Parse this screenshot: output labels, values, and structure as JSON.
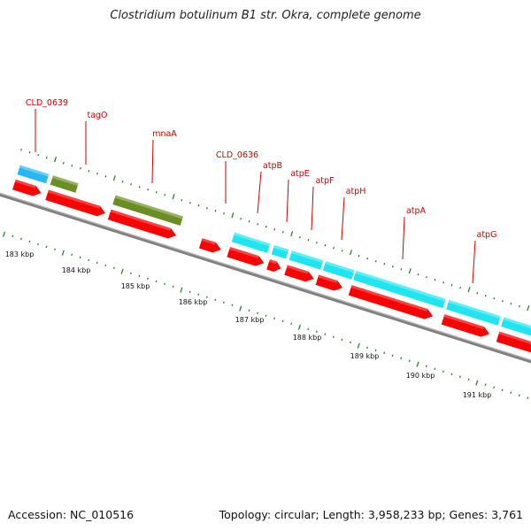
{
  "header": {
    "title": "Clostridium botulinum B1 str. Okra, complete genome"
  },
  "footer": {
    "accession": "Accession: NC_010516",
    "summary": "Topology: circular; Length: 3,958,233 bp; Genes: 3,761"
  },
  "scale": {
    "labels": [
      "183 kbp",
      "184 kbp",
      "185 kbp",
      "186 kbp",
      "187 kbp",
      "188 kbp",
      "189 kbp",
      "190 kbp",
      "191 kbp"
    ]
  },
  "colors": {
    "backbone": "#808080",
    "cds_arrow": "#ff0000",
    "blue_feature": "#29b6f6",
    "olive_feature": "#6b8e23",
    "cyan_feature": "#1ee5f0",
    "tick": "#1a7a1a",
    "label": "#cc0000"
  },
  "genes": [
    {
      "name": "CLD_0639"
    },
    {
      "name": "tagO"
    },
    {
      "name": "mnaA"
    },
    {
      "name": "CLD_0636"
    },
    {
      "name": "atpB"
    },
    {
      "name": "atpE"
    },
    {
      "name": "atpF"
    },
    {
      "name": "atpH"
    },
    {
      "name": "atpA"
    },
    {
      "name": "atpG"
    }
  ]
}
